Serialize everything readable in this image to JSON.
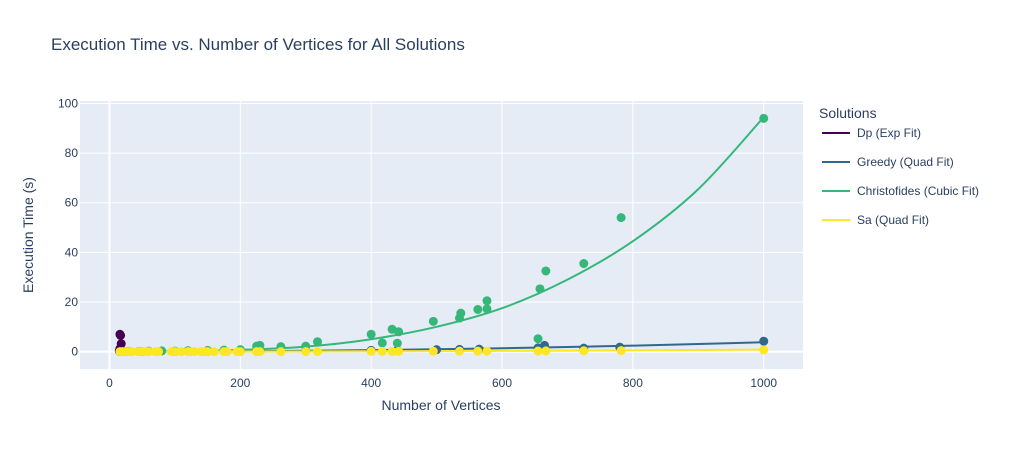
{
  "chart_data": {
    "type": "scatter",
    "title": "Execution Time vs. Number of Vertices for All Solutions",
    "xlabel": "Number of Vertices",
    "ylabel": "Execution Time (s)",
    "xlim": [
      -45,
      1060
    ],
    "ylim": [
      -7,
      101
    ],
    "x_ticks": [
      0,
      200,
      400,
      600,
      800,
      1000
    ],
    "x_tick_labels": [
      "0",
      "200",
      "400",
      "600",
      "800",
      "1000"
    ],
    "y_ticks": [
      0,
      20,
      40,
      60,
      80,
      100
    ],
    "y_tick_labels": [
      "0",
      "20",
      "40",
      "60",
      "80",
      "100"
    ],
    "grid": true,
    "legend_title": "Solutions",
    "legend_placement": "right",
    "series": [
      {
        "name": "Dp (Exp Fit)",
        "color": "#440154",
        "points_x": [
          16,
          17,
          18,
          16,
          17,
          15,
          16,
          17
        ],
        "points_y": [
          7.0,
          6.5,
          3.2,
          1.2,
          0.8,
          0.3,
          0.1,
          0.05
        ],
        "fit_x": [
          14,
          15,
          16,
          17,
          18
        ],
        "fit_y": [
          0.3,
          0.7,
          1.6,
          3.5,
          7.0
        ]
      },
      {
        "name": "Greedy (Quad Fit)",
        "color": "#31688e",
        "points_x": [
          16,
          25,
          50,
          100,
          150,
          200,
          230,
          300,
          400,
          440,
          500,
          535,
          565,
          655,
          665,
          725,
          780,
          1000
        ],
        "points_y": [
          0.0,
          0.0,
          0.0,
          0.05,
          0.1,
          0.15,
          0.2,
          0.3,
          0.5,
          0.55,
          0.8,
          0.9,
          1.0,
          1.5,
          2.5,
          1.4,
          1.8,
          4.2
        ],
        "fit_x": [
          14,
          100,
          200,
          300,
          400,
          500,
          600,
          700,
          800,
          900,
          1000
        ],
        "fit_y": [
          0.0,
          0.05,
          0.15,
          0.35,
          0.6,
          0.95,
          1.35,
          1.85,
          2.4,
          3.05,
          3.8
        ]
      },
      {
        "name": "Christofides (Cubic Fit)",
        "color": "#35b779",
        "points_x": [
          20,
          30,
          45,
          60,
          80,
          100,
          120,
          150,
          175,
          200,
          225,
          230,
          262,
          300,
          318,
          400,
          417,
          432,
          440,
          442,
          495,
          535,
          537,
          563,
          577,
          577,
          655,
          658,
          667,
          725,
          782,
          1000
        ],
        "points_y": [
          0.0,
          0.1,
          0.1,
          0.2,
          0.3,
          0.2,
          0.4,
          0.5,
          0.6,
          0.8,
          2.2,
          2.5,
          2.0,
          2.2,
          4.0,
          7.0,
          3.5,
          9.0,
          3.4,
          8.0,
          12.2,
          13.5,
          15.5,
          17.0,
          17.2,
          20.5,
          5.2,
          25.3,
          32.5,
          35.5,
          54.0,
          94.0
        ],
        "fit_x": [
          14,
          100,
          200,
          300,
          400,
          500,
          600,
          700,
          800,
          900,
          1000
        ],
        "fit_y": [
          0.0,
          0.2,
          0.7,
          2.0,
          5.0,
          10.0,
          17.5,
          29.0,
          44.5,
          65.5,
          94.5
        ]
      },
      {
        "name": "Sa (Quad Fit)",
        "color": "#fde725",
        "points_x": [
          16,
          20,
          25,
          30,
          35,
          45,
          50,
          55,
          60,
          70,
          75,
          95,
          100,
          110,
          120,
          125,
          130,
          140,
          145,
          150,
          160,
          175,
          180,
          195,
          200,
          225,
          230,
          262,
          300,
          318,
          400,
          417,
          432,
          442,
          495,
          535,
          563,
          577,
          655,
          667,
          725,
          782,
          1000
        ],
        "points_y": [
          0.0,
          0.0,
          0.0,
          0.0,
          0.0,
          0.0,
          0.0,
          0.0,
          0.0,
          0.0,
          0.0,
          0.0,
          0.0,
          0.0,
          0.0,
          0.0,
          0.0,
          0.0,
          0.0,
          0.0,
          0.0,
          0.0,
          0.0,
          0.0,
          0.0,
          0.0,
          0.0,
          0.0,
          0.05,
          0.05,
          0.1,
          0.1,
          0.1,
          0.1,
          0.15,
          0.2,
          0.2,
          0.2,
          0.25,
          0.3,
          0.35,
          0.4,
          0.7
        ],
        "fit_x": [
          14,
          200,
          400,
          600,
          800,
          1000
        ],
        "fit_y": [
          0.0,
          0.05,
          0.15,
          0.3,
          0.5,
          0.8
        ]
      }
    ]
  }
}
